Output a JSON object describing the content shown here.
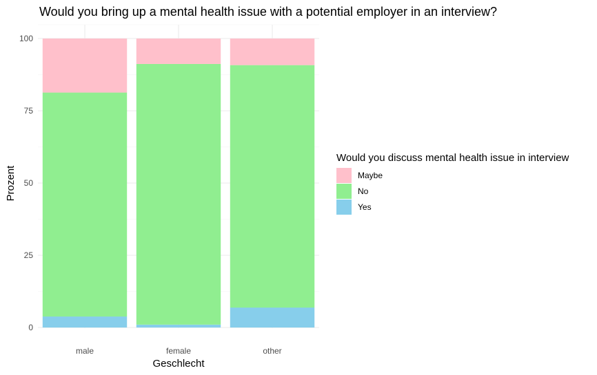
{
  "chart_data": {
    "type": "bar",
    "stacked": true,
    "title": "Would you bring up a mental health issue with a potential employer in an interview?",
    "xlabel": "Geschlecht",
    "ylabel": "Prozent",
    "categories": [
      "male",
      "female",
      "other"
    ],
    "ylim": [
      0,
      100
    ],
    "yticks": [
      0,
      25,
      50,
      75,
      100
    ],
    "grid": true,
    "legend": {
      "title": "Would you discuss mental health issue in interview",
      "placement": "right"
    },
    "series": [
      {
        "name": "Yes",
        "color": "#87CEEB",
        "values": [
          3.8,
          1.0,
          6.9
        ]
      },
      {
        "name": "No",
        "color": "#90EE90",
        "values": [
          77.5,
          90.2,
          83.9
        ]
      },
      {
        "name": "Maybe",
        "color": "#FFC0CB",
        "values": [
          18.7,
          8.8,
          9.2
        ]
      }
    ],
    "legend_order": [
      "Maybe",
      "No",
      "Yes"
    ]
  }
}
